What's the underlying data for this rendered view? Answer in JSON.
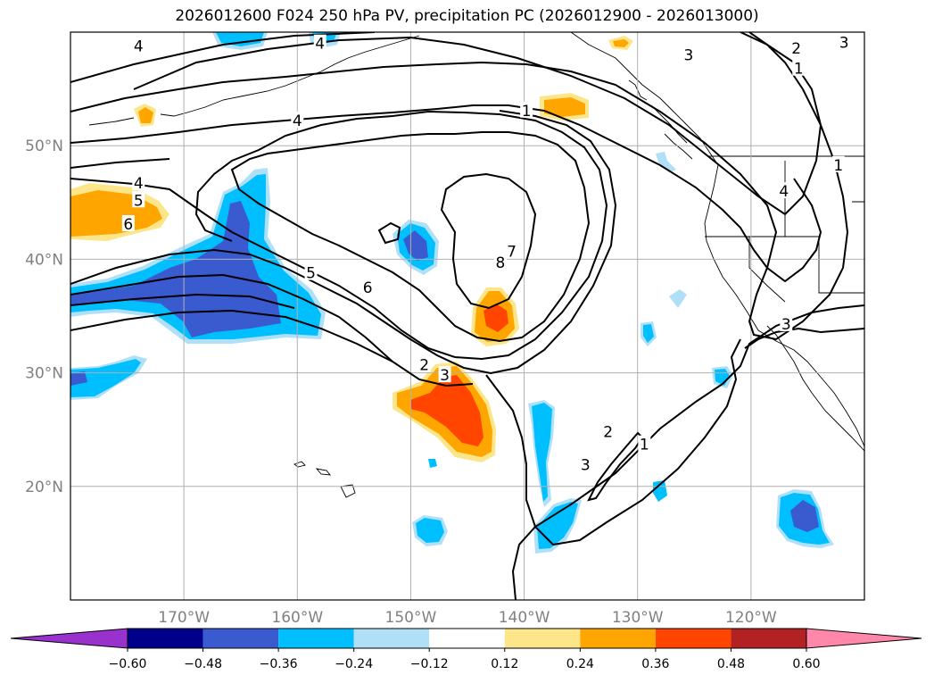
{
  "title": "2026012600 F024 250 hPa PV, precipitation PC (2026012900 - 2026013000)",
  "map": {
    "extent": {
      "lon_min": -180,
      "lon_max": -110,
      "lat_min": 10,
      "lat_max": 60
    },
    "lat_ticks": [
      {
        "value": 20,
        "label": "20°N"
      },
      {
        "value": 30,
        "label": "30°N"
      },
      {
        "value": 40,
        "label": "40°N"
      },
      {
        "value": 50,
        "label": "50°N"
      }
    ],
    "lon_ticks": [
      {
        "value": -170,
        "label": "170°W"
      },
      {
        "value": -160,
        "label": "160°W"
      },
      {
        "value": -150,
        "label": "150°W"
      },
      {
        "value": -140,
        "label": "140°W"
      },
      {
        "value": -130,
        "label": "130°W"
      },
      {
        "value": -120,
        "label": "120°W"
      }
    ],
    "grid": true,
    "contour_color": "#000000",
    "contour_labels": [
      {
        "text": "4",
        "lon": -174,
        "lat": 58.8
      },
      {
        "text": "4",
        "lon": -158,
        "lat": 59
      },
      {
        "text": "4",
        "lon": -160,
        "lat": 52.2
      },
      {
        "text": "4",
        "lon": -174,
        "lat": 46.7
      },
      {
        "text": "5",
        "lon": -174,
        "lat": 45.2
      },
      {
        "text": "6",
        "lon": -174.9,
        "lat": 43.1
      },
      {
        "text": "5",
        "lon": -158.8,
        "lat": 38.8
      },
      {
        "text": "6",
        "lon": -153.8,
        "lat": 37.5
      },
      {
        "text": "8",
        "lon": -142.1,
        "lat": 39.7
      },
      {
        "text": "7",
        "lon": -141.1,
        "lat": 40.7
      },
      {
        "text": "1",
        "lon": -139.8,
        "lat": 53.1
      },
      {
        "text": "2",
        "lon": -148.8,
        "lat": 30.7
      },
      {
        "text": "3",
        "lon": -147,
        "lat": 29.8
      },
      {
        "text": "2",
        "lon": -132.6,
        "lat": 24.8
      },
      {
        "text": "3",
        "lon": -134.6,
        "lat": 21.9
      },
      {
        "text": "1",
        "lon": -129.4,
        "lat": 23.7
      },
      {
        "text": "3",
        "lon": -125.5,
        "lat": 58
      },
      {
        "text": "3",
        "lon": -111.8,
        "lat": 59.1
      },
      {
        "text": "2",
        "lon": -116,
        "lat": 58.6
      },
      {
        "text": "1",
        "lon": -115.8,
        "lat": 56.8
      },
      {
        "text": "1",
        "lon": -112.3,
        "lat": 48.3
      },
      {
        "text": "4",
        "lon": -117.1,
        "lat": 46
      },
      {
        "text": "3",
        "lon": -116.9,
        "lat": 34.3
      }
    ]
  },
  "colorbar": {
    "levels": [
      -0.6,
      -0.48,
      -0.36,
      -0.24,
      -0.12,
      0.12,
      0.24,
      0.36,
      0.48,
      0.6
    ],
    "tick_labels": [
      "−0.60",
      "−0.48",
      "−0.36",
      "−0.24",
      "−0.12",
      "0.12",
      "0.24",
      "0.36",
      "0.48",
      "0.60"
    ],
    "colors": [
      "#9932cc",
      "#00008b",
      "#3a5bd0",
      "#00bfff",
      "#b0e0f8",
      "#ffffff",
      "#fde68a",
      "#ffa500",
      "#ff4500",
      "#b22222",
      "#ff88aa"
    ],
    "extend": "both"
  }
}
